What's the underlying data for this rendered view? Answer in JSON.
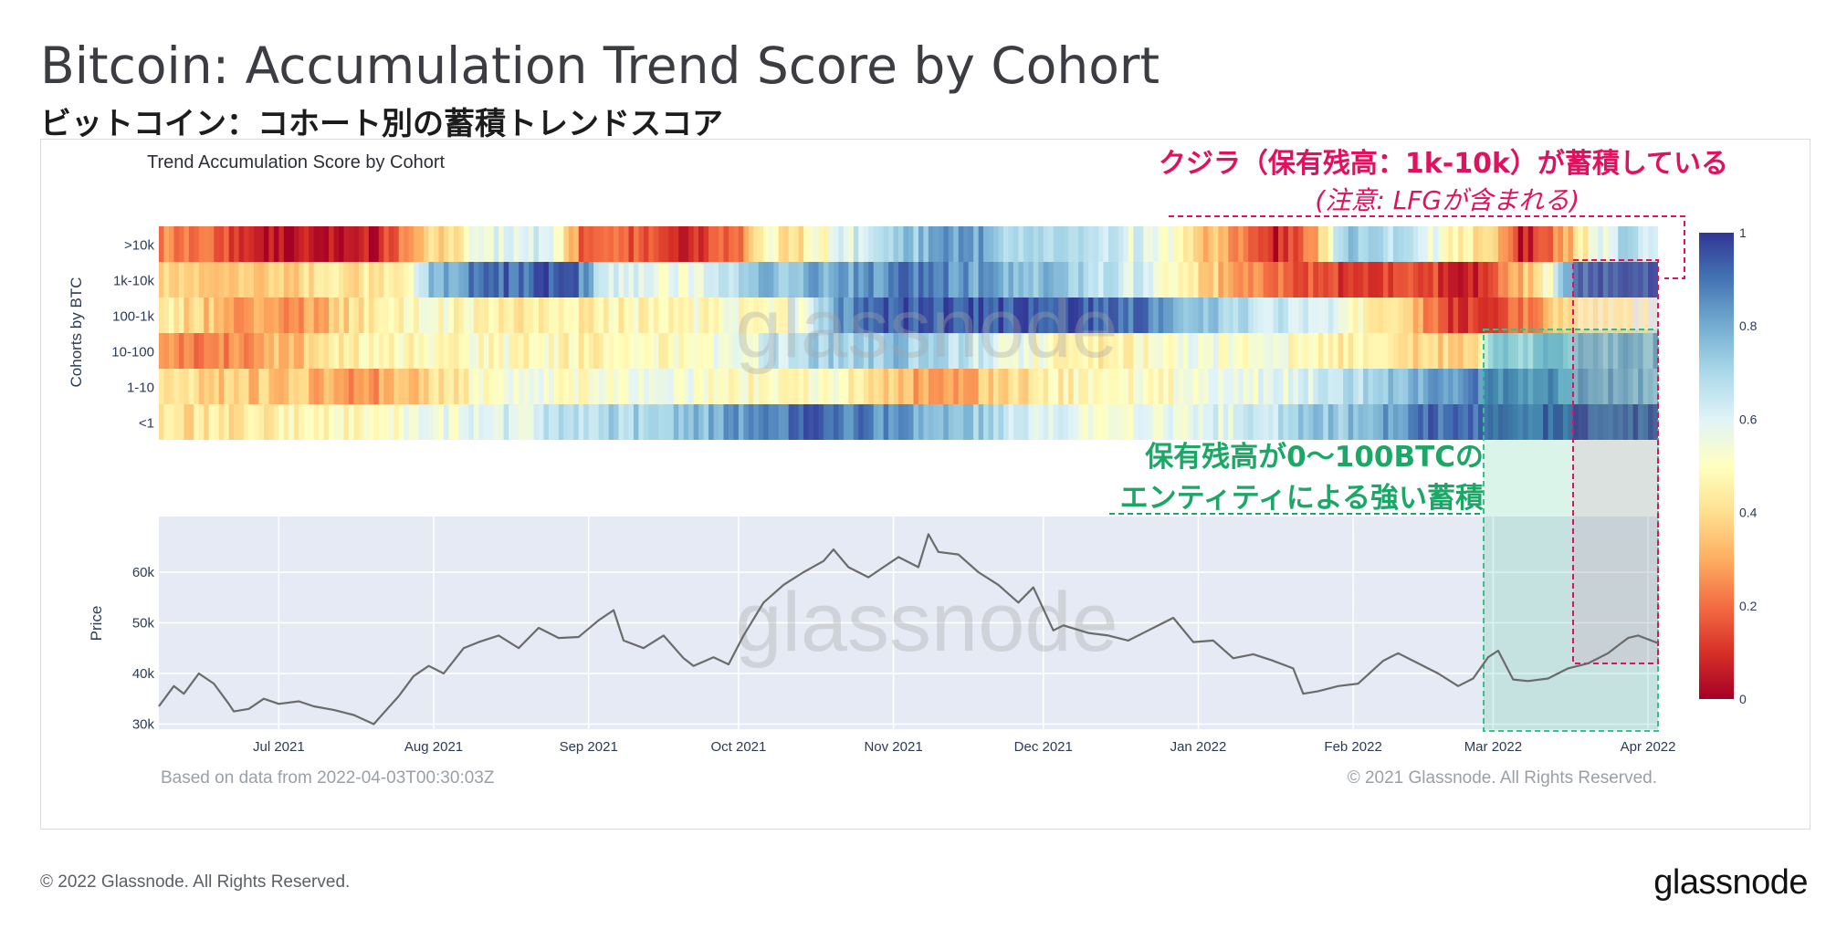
{
  "header": {
    "title": "Bitcoin: Accumulation Trend Score by Cohort",
    "subtitle": "ビットコイン：コホート別の蓄積トレンドスコア"
  },
  "footer": {
    "copyright": "© 2022 Glassnode. All Rights Reserved.",
    "brand": "glassnode"
  },
  "chart_data": {
    "type": "heatmap",
    "title": "Trend Accumulation Score by Cohort",
    "watermark": "glassnode",
    "source_note": "Based on data from 2022-04-03T00:30:03Z",
    "copyright_note": "© 2021 Glassnode. All Rights Reserved.",
    "heatmap": {
      "ylabel": "Cohorts by BTC",
      "cohorts": [
        ">10k",
        "1k-10k",
        "100-1k",
        "10-100",
        "1-10",
        "<1"
      ],
      "x_start": "2021-06-07",
      "x_end": "2022-04-03",
      "colorbar": {
        "ticks": [
          "0",
          "0.2",
          "0.4",
          "0.6",
          "0.8",
          "1"
        ],
        "range": [
          0,
          1
        ],
        "colorscale": [
          "#a50026",
          "#d73027",
          "#f46d43",
          "#fdae61",
          "#fee090",
          "#ffffbf",
          "#e0f3f8",
          "#abd9e9",
          "#74add1",
          "#4575b4",
          "#313695"
        ]
      },
      "segments": [
        {
          "cohort": ">10k",
          "knots": [
            [
              "2021-06-07",
              0.25
            ],
            [
              "2021-06-18",
              0.2
            ],
            [
              "2021-06-25",
              0.05
            ],
            [
              "2021-07-10",
              0.03
            ],
            [
              "2021-07-20",
              0.05
            ],
            [
              "2021-07-27",
              0.3
            ],
            [
              "2021-08-08",
              0.5
            ],
            [
              "2021-08-15",
              0.62
            ],
            [
              "2021-08-24",
              0.6
            ],
            [
              "2021-08-30",
              0.2
            ],
            [
              "2021-09-10",
              0.15
            ],
            [
              "2021-09-20",
              0.1
            ],
            [
              "2021-10-01",
              0.2
            ],
            [
              "2021-10-06",
              0.5
            ],
            [
              "2021-10-12",
              0.4
            ],
            [
              "2021-10-22",
              0.6
            ],
            [
              "2021-11-05",
              0.75
            ],
            [
              "2021-11-15",
              0.85
            ],
            [
              "2021-11-25",
              0.7
            ],
            [
              "2021-12-10",
              0.65
            ],
            [
              "2021-12-25",
              0.55
            ],
            [
              "2022-01-01",
              0.35
            ],
            [
              "2022-01-10",
              0.25
            ],
            [
              "2022-01-16",
              0.05
            ],
            [
              "2022-01-24",
              0.3
            ],
            [
              "2022-01-30",
              0.75
            ],
            [
              "2022-02-10",
              0.65
            ],
            [
              "2022-02-20",
              0.5
            ],
            [
              "2022-03-01",
              0.35
            ],
            [
              "2022-03-06",
              0.05
            ],
            [
              "2022-03-14",
              0.25
            ],
            [
              "2022-03-20",
              0.5
            ],
            [
              "2022-03-26",
              0.7
            ],
            [
              "2022-04-03",
              0.65
            ]
          ]
        },
        {
          "cohort": "1k-10k",
          "knots": [
            [
              "2021-06-07",
              0.4
            ],
            [
              "2021-06-20",
              0.35
            ],
            [
              "2021-07-10",
              0.4
            ],
            [
              "2021-07-26",
              0.45
            ],
            [
              "2021-08-01",
              0.8
            ],
            [
              "2021-08-12",
              0.9
            ],
            [
              "2021-08-28",
              0.95
            ],
            [
              "2021-09-05",
              0.6
            ],
            [
              "2021-09-20",
              0.55
            ],
            [
              "2021-10-05",
              0.75
            ],
            [
              "2021-10-20",
              0.8
            ],
            [
              "2021-11-05",
              0.9
            ],
            [
              "2021-11-20",
              0.8
            ],
            [
              "2021-12-05",
              0.75
            ],
            [
              "2021-12-20",
              0.6
            ],
            [
              "2022-01-01",
              0.4
            ],
            [
              "2022-01-15",
              0.2
            ],
            [
              "2022-01-25",
              0.15
            ],
            [
              "2022-02-05",
              0.1
            ],
            [
              "2022-02-15",
              0.15
            ],
            [
              "2022-02-25",
              0.05
            ],
            [
              "2022-03-05",
              0.3
            ],
            [
              "2022-03-12",
              0.5
            ],
            [
              "2022-03-16",
              0.85
            ],
            [
              "2022-03-24",
              0.95
            ],
            [
              "2022-04-03",
              0.95
            ]
          ]
        },
        {
          "cohort": "100-1k",
          "knots": [
            [
              "2021-06-07",
              0.45
            ],
            [
              "2021-06-20",
              0.3
            ],
            [
              "2021-07-05",
              0.25
            ],
            [
              "2021-07-15",
              0.4
            ],
            [
              "2021-08-01",
              0.5
            ],
            [
              "2021-08-15",
              0.45
            ],
            [
              "2021-09-01",
              0.45
            ],
            [
              "2021-09-20",
              0.5
            ],
            [
              "2021-10-05",
              0.5
            ],
            [
              "2021-10-15",
              0.55
            ],
            [
              "2021-10-20",
              0.85
            ],
            [
              "2021-11-01",
              0.95
            ],
            [
              "2021-11-20",
              0.95
            ],
            [
              "2021-12-10",
              0.95
            ],
            [
              "2021-12-25",
              0.85
            ],
            [
              "2022-01-05",
              0.7
            ],
            [
              "2022-01-25",
              0.6
            ],
            [
              "2022-02-10",
              0.4
            ],
            [
              "2022-02-20",
              0.1
            ],
            [
              "2022-03-01",
              0.15
            ],
            [
              "2022-03-10",
              0.3
            ],
            [
              "2022-03-20",
              0.5
            ],
            [
              "2022-04-03",
              0.55
            ]
          ]
        },
        {
          "cohort": "10-100",
          "knots": [
            [
              "2021-06-07",
              0.3
            ],
            [
              "2021-06-15",
              0.2
            ],
            [
              "2021-07-05",
              0.35
            ],
            [
              "2021-07-15",
              0.45
            ],
            [
              "2021-08-01",
              0.5
            ],
            [
              "2021-08-15",
              0.5
            ],
            [
              "2021-09-01",
              0.45
            ],
            [
              "2021-09-20",
              0.5
            ],
            [
              "2021-10-05",
              0.6
            ],
            [
              "2021-10-15",
              0.7
            ],
            [
              "2021-11-01",
              0.75
            ],
            [
              "2021-11-15",
              0.65
            ],
            [
              "2021-12-01",
              0.5
            ],
            [
              "2021-12-15",
              0.45
            ],
            [
              "2022-01-01",
              0.55
            ],
            [
              "2022-01-20",
              0.5
            ],
            [
              "2022-02-10",
              0.4
            ],
            [
              "2022-02-25",
              0.35
            ],
            [
              "2022-03-01",
              0.7
            ],
            [
              "2022-03-15",
              0.75
            ],
            [
              "2022-04-03",
              0.75
            ]
          ]
        },
        {
          "cohort": "1-10",
          "knots": [
            [
              "2021-06-07",
              0.45
            ],
            [
              "2021-06-20",
              0.35
            ],
            [
              "2021-07-05",
              0.35
            ],
            [
              "2021-07-18",
              0.25
            ],
            [
              "2021-08-01",
              0.4
            ],
            [
              "2021-08-15",
              0.55
            ],
            [
              "2021-09-01",
              0.5
            ],
            [
              "2021-09-15",
              0.55
            ],
            [
              "2021-10-01",
              0.5
            ],
            [
              "2021-10-20",
              0.5
            ],
            [
              "2021-11-01",
              0.35
            ],
            [
              "2021-11-10",
              0.25
            ],
            [
              "2021-11-20",
              0.35
            ],
            [
              "2021-12-01",
              0.45
            ],
            [
              "2021-12-20",
              0.5
            ],
            [
              "2022-01-10",
              0.55
            ],
            [
              "2022-01-25",
              0.6
            ],
            [
              "2022-02-05",
              0.7
            ],
            [
              "2022-02-20",
              0.85
            ],
            [
              "2022-03-05",
              0.9
            ],
            [
              "2022-03-20",
              0.8
            ],
            [
              "2022-04-03",
              0.75
            ]
          ]
        },
        {
          "cohort": "<1",
          "knots": [
            [
              "2021-06-07",
              0.4
            ],
            [
              "2021-07-01",
              0.45
            ],
            [
              "2021-07-20",
              0.5
            ],
            [
              "2021-08-15",
              0.6
            ],
            [
              "2021-09-05",
              0.7
            ],
            [
              "2021-09-20",
              0.75
            ],
            [
              "2021-10-05",
              0.85
            ],
            [
              "2021-10-15",
              0.92
            ],
            [
              "2021-11-01",
              0.85
            ],
            [
              "2021-11-15",
              0.75
            ],
            [
              "2021-12-01",
              0.6
            ],
            [
              "2021-12-20",
              0.55
            ],
            [
              "2022-01-05",
              0.6
            ],
            [
              "2022-01-20",
              0.7
            ],
            [
              "2022-02-05",
              0.8
            ],
            [
              "2022-02-15",
              0.9
            ],
            [
              "2022-03-01",
              0.95
            ],
            [
              "2022-04-03",
              0.95
            ]
          ]
        }
      ]
    },
    "price": {
      "type": "line",
      "ylabel": "Price",
      "ylim": [
        29000,
        71000
      ],
      "yticks": [
        30000,
        40000,
        50000,
        60000
      ],
      "ytick_labels": [
        "30k",
        "40k",
        "50k",
        "60k"
      ],
      "xticks": [
        "2021-07-01",
        "2021-08-01",
        "2021-09-01",
        "2021-10-01",
        "2021-11-01",
        "2021-12-01",
        "2022-01-01",
        "2022-02-01",
        "2022-03-01",
        "2022-04-01"
      ],
      "xtick_labels": [
        "Jul 2021",
        "Aug 2021",
        "Sep 2021",
        "Oct 2021",
        "Nov 2021",
        "Dec 2021",
        "Jan 2022",
        "Feb 2022",
        "Mar 2022",
        "Apr 2022"
      ],
      "series": [
        {
          "x": [
            "2021-06-07",
            "2021-06-10",
            "2021-06-12",
            "2021-06-15",
            "2021-06-18",
            "2021-06-21",
            "2021-06-22",
            "2021-06-25",
            "2021-06-28",
            "2021-07-01",
            "2021-07-05",
            "2021-07-08",
            "2021-07-12",
            "2021-07-16",
            "2021-07-20",
            "2021-07-22",
            "2021-07-25",
            "2021-07-28",
            "2021-07-31",
            "2021-08-03",
            "2021-08-07",
            "2021-08-10",
            "2021-08-14",
            "2021-08-18",
            "2021-08-22",
            "2021-08-26",
            "2021-08-30",
            "2021-09-03",
            "2021-09-06",
            "2021-09-08",
            "2021-09-12",
            "2021-09-16",
            "2021-09-20",
            "2021-09-22",
            "2021-09-26",
            "2021-09-29",
            "2021-10-02",
            "2021-10-06",
            "2021-10-10",
            "2021-10-14",
            "2021-10-18",
            "2021-10-20",
            "2021-10-23",
            "2021-10-27",
            "2021-10-30",
            "2021-11-02",
            "2021-11-06",
            "2021-11-08",
            "2021-11-10",
            "2021-11-14",
            "2021-11-18",
            "2021-11-22",
            "2021-11-26",
            "2021-11-29",
            "2021-12-03",
            "2021-12-05",
            "2021-12-10",
            "2021-12-14",
            "2021-12-18",
            "2021-12-22",
            "2021-12-27",
            "2021-12-31",
            "2022-01-04",
            "2022-01-08",
            "2022-01-12",
            "2022-01-16",
            "2022-01-20",
            "2022-01-22",
            "2022-01-25",
            "2022-01-29",
            "2022-02-02",
            "2022-02-07",
            "2022-02-10",
            "2022-02-14",
            "2022-02-18",
            "2022-02-22",
            "2022-02-25",
            "2022-02-28",
            "2022-03-02",
            "2022-03-05",
            "2022-03-08",
            "2022-03-12",
            "2022-03-16",
            "2022-03-20",
            "2022-03-24",
            "2022-03-28",
            "2022-03-30",
            "2022-04-03"
          ],
          "y": [
            33500,
            37500,
            36000,
            40000,
            38000,
            34000,
            32500,
            33000,
            35000,
            34000,
            34500,
            33500,
            32800,
            31800,
            30000,
            32200,
            35500,
            39500,
            41500,
            40000,
            45000,
            46200,
            47500,
            45000,
            49000,
            47000,
            47200,
            50500,
            52500,
            46500,
            45000,
            47500,
            43000,
            41500,
            43200,
            41800,
            47500,
            54000,
            57500,
            60000,
            62200,
            64500,
            61000,
            59000,
            61000,
            63000,
            61000,
            67500,
            64000,
            63500,
            60000,
            57500,
            54000,
            57000,
            48500,
            49500,
            48000,
            47500,
            46500,
            48500,
            51000,
            46200,
            46500,
            43000,
            43800,
            42500,
            41000,
            36000,
            36500,
            37500,
            38000,
            42500,
            44000,
            42000,
            40000,
            37500,
            39000,
            43200,
            44500,
            38800,
            38500,
            39000,
            41000,
            42000,
            44000,
            47000,
            47500,
            46000
          ]
        }
      ]
    },
    "annotations": {
      "whales_title": "クジラ（保有残高：1k-10k）が蓄積している",
      "whales_note": "(注意: LFGが含まれる)",
      "small_line1": "保有残高が0〜100BTCの",
      "small_line2": "エンティティによる強い蓄積",
      "whale_color": "#e0115f",
      "small_color": "#1ba766"
    }
  }
}
